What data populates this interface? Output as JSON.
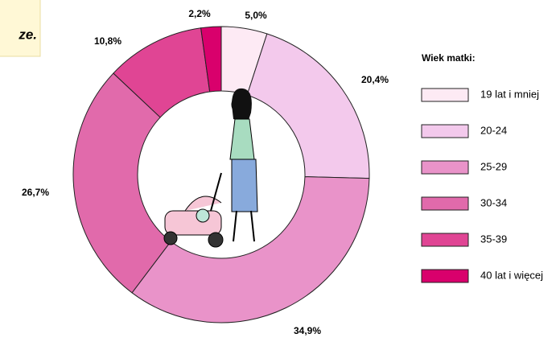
{
  "chart_data": {
    "type": "donut",
    "annotation": "ze.",
    "legend_title": "Wiek matki:",
    "categories": [
      "19 lat i mniej",
      "20-24",
      "25-29",
      "30-34",
      "35-39",
      "40 lat i więcej"
    ],
    "values": [
      5.0,
      20.4,
      34.9,
      26.7,
      10.8,
      2.2
    ],
    "value_labels": [
      "5,0%",
      "20,4%",
      "34,9%",
      "26,7%",
      "10,8%",
      "2,2%"
    ],
    "colors": [
      "#fdeaf4",
      "#f3c9ec",
      "#e993c9",
      "#e16aab",
      "#e04594",
      "#d9006c"
    ],
    "legend": "right"
  }
}
